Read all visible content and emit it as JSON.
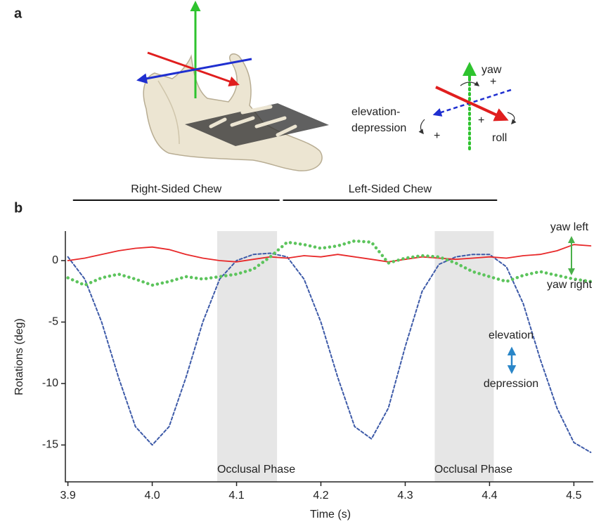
{
  "panel_a": {
    "label": "a",
    "yaw": "yaw",
    "roll": "roll",
    "elevation_depression": [
      "elevation-",
      "depression"
    ],
    "signs": [
      "+",
      "+",
      "+"
    ]
  },
  "chart_data": {
    "type": "line",
    "panel_label": "b",
    "xlabel": "Time (s)",
    "ylabel": "Rotations (deg)",
    "xlim": [
      3.897,
      4.523
    ],
    "ylim": [
      -18,
      2.4
    ],
    "xticks": [
      3.9,
      {
        "value": 4,
        "label": "4.0"
      },
      4.1,
      4.2,
      4.3,
      4.4,
      4.5
    ],
    "yticks": [
      -15,
      -10,
      -5,
      0
    ],
    "x": [
      3.9,
      3.92,
      3.94,
      3.96,
      3.98,
      4.0,
      4.02,
      4.04,
      4.06,
      4.08,
      4.1,
      4.12,
      4.14,
      4.16,
      4.18,
      4.2,
      4.22,
      4.24,
      4.26,
      4.28,
      4.3,
      4.32,
      4.34,
      4.36,
      4.38,
      4.4,
      4.42,
      4.44,
      4.46,
      4.48,
      4.5,
      4.52
    ],
    "series": [
      {
        "color": "#3d5aa8",
        "style": "dashed",
        "values": [
          0.3,
          -1.5,
          -5,
          -9.5,
          -13.5,
          -15,
          -13.5,
          -9.5,
          -5,
          -1.5,
          0,
          0.5,
          0.6,
          0.3,
          -1.5,
          -5,
          -9.5,
          -13.5,
          -14.5,
          -12,
          -7,
          -2.5,
          -0.3,
          0.3,
          0.5,
          0.5,
          -0.5,
          -3.5,
          -8,
          -12,
          -14.8,
          -15.6
        ]
      },
      {
        "color": "#e8292a",
        "style": "solid",
        "values": [
          0,
          0.2,
          0.5,
          0.8,
          1.0,
          1.1,
          0.9,
          0.5,
          0.2,
          0,
          -0.1,
          0.1,
          0.3,
          0.2,
          0.4,
          0.3,
          0.5,
          0.3,
          0.1,
          -0.1,
          0.1,
          0.3,
          0.2,
          0.1,
          0.2,
          0.3,
          0.2,
          0.4,
          0.5,
          0.8,
          1.3,
          1.2
        ]
      },
      {
        "color": "#5cc45c",
        "style": "dotted",
        "values": [
          -1.4,
          -2.0,
          -1.4,
          -1.1,
          -1.5,
          -2.0,
          -1.7,
          -1.3,
          -1.5,
          -1.3,
          -1.1,
          -0.7,
          0.3,
          1.5,
          1.3,
          1.0,
          1.2,
          1.6,
          1.5,
          -0.2,
          0.2,
          0.4,
          0.3,
          -0.2,
          -0.9,
          -1.3,
          -1.7,
          -1.2,
          -0.9,
          -1.2,
          -1.5,
          -1.7
        ]
      }
    ],
    "shaded_regions": [
      {
        "x": [
          4.077,
          4.148
        ],
        "label": "Occlusal Phase"
      },
      {
        "x": [
          4.335,
          4.405
        ],
        "label": "Occlusal Phase"
      }
    ],
    "brackets": [
      {
        "x": [
          3.906,
          4.151
        ],
        "label": "Right-Sided Chew"
      },
      {
        "x": [
          4.155,
          4.409
        ],
        "label": "Left-Sided Chew"
      }
    ],
    "annotations": [
      "yaw left",
      "yaw right",
      "elevation",
      "depression"
    ]
  }
}
